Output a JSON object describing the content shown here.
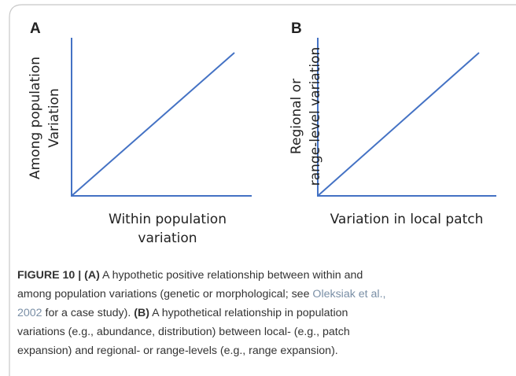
{
  "panels": [
    {
      "label": "A",
      "y_label": [
        "Among population",
        "Variation"
      ],
      "x_label": [
        "Within population",
        "variation"
      ]
    },
    {
      "label": "B",
      "y_label": [
        "Regional or",
        "range-level variation"
      ],
      "x_label": [
        "Variation in local patch"
      ]
    }
  ],
  "caption": {
    "lines": [
      [
        "FIGURE 10 | (A)",
        " A hypothetic positive relationship between within and"
      ],
      [
        "among population variations (genetic or morphological; see ",
        "Oleksiak et al.,"
      ],
      [
        "2002",
        " for a case study). ",
        "(B)",
        " A hypothetical relationship in population"
      ],
      [
        "variations (e.g., abundance, distribution) between local- (e.g., patch"
      ],
      [
        "expansion) and regional- or range-levels (e.g., range expansion)."
      ]
    ]
  }
}
